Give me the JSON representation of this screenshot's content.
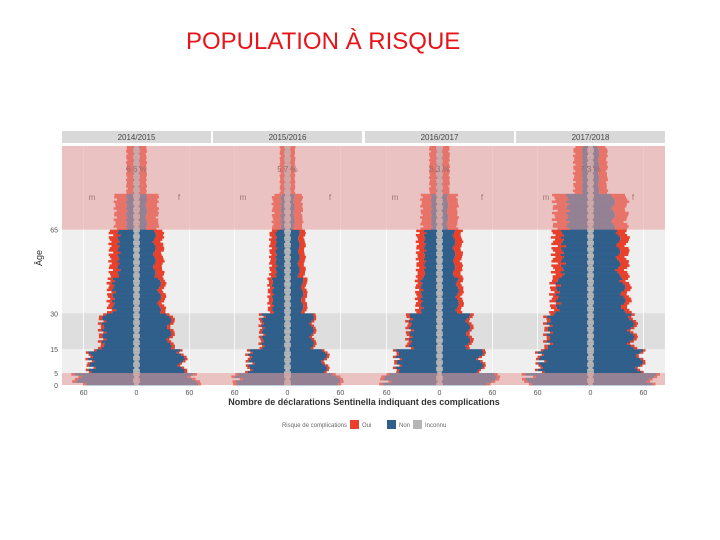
{
  "slide": {
    "title": "POPULATION À RISQUE"
  },
  "colors": {
    "oui": "#e8402a",
    "non": "#2f5f8a",
    "inconnu": "#b6b6b6",
    "risk_band": "#e89c9c",
    "panel_header": "#d9d9d9"
  },
  "chart_data": {
    "type": "bar",
    "orientation": "horizontal-population-pyramid",
    "facets": [
      {
        "label": "2014/2015",
        "percent": "6.6 %"
      },
      {
        "label": "2015/2016",
        "percent": "5.7 %"
      },
      {
        "label": "2016/2017",
        "percent": "6.3 %"
      },
      {
        "label": "2017/2018",
        "percent": "7.3 %"
      }
    ],
    "sex_labels": [
      "m",
      "f"
    ],
    "ylabel": "Âge",
    "y_ticks": [
      "0",
      "5",
      "15",
      "30",
      "65"
    ],
    "y_tick_values": [
      0,
      5,
      15,
      30,
      65
    ],
    "ylim": [
      0,
      100
    ],
    "x_ticks": [
      "60",
      "0",
      "60"
    ],
    "xlim": [
      -80,
      80
    ],
    "xlabel": "Nombre de déclarations Sentinella indiquant des complications",
    "legend": {
      "title": "Risque de complications",
      "entries": [
        "Oui",
        "Non",
        "Inconnu"
      ],
      "placement": "bottom"
    },
    "risk_age_bands": [
      [
        0,
        5
      ],
      [
        65,
        100
      ]
    ],
    "shaded_age_bands": [
      [
        15,
        30
      ]
    ],
    "age_groups": [
      0,
      5,
      15,
      30,
      45,
      65,
      80,
      100
    ],
    "series_by_facet": [
      {
        "facet": "2014/2015",
        "male_non": [
          70,
          55,
          40,
          28,
          22,
          12,
          4
        ],
        "female_non": [
          70,
          55,
          40,
          28,
          22,
          12,
          4
        ],
        "male_oui": [
          4,
          3,
          4,
          6,
          10,
          14,
          8
        ],
        "female_oui": [
          4,
          3,
          4,
          6,
          10,
          14,
          8
        ]
      },
      {
        "facet": "2015/2016",
        "male_non": [
          60,
          45,
          30,
          18,
          14,
          8,
          3
        ],
        "female_non": [
          60,
          45,
          30,
          18,
          14,
          8,
          3
        ],
        "male_oui": [
          4,
          3,
          3,
          5,
          7,
          10,
          6
        ],
        "female_oui": [
          4,
          3,
          3,
          5,
          7,
          10,
          6
        ]
      },
      {
        "facet": "2016/2017",
        "male_non": [
          65,
          50,
          35,
          22,
          18,
          10,
          4
        ],
        "female_non": [
          65,
          50,
          35,
          22,
          18,
          10,
          4
        ],
        "male_oui": [
          4,
          3,
          4,
          6,
          9,
          12,
          8
        ],
        "female_oui": [
          4,
          3,
          4,
          6,
          9,
          12,
          8
        ]
      },
      {
        "facet": "2017/2018",
        "male_non": [
          75,
          60,
          50,
          40,
          34,
          28,
          10
        ],
        "female_non": [
          75,
          60,
          50,
          40,
          34,
          28,
          10
        ],
        "male_oui": [
          4,
          3,
          4,
          7,
          11,
          16,
          10
        ],
        "female_oui": [
          4,
          3,
          4,
          7,
          11,
          16,
          10
        ]
      }
    ]
  }
}
